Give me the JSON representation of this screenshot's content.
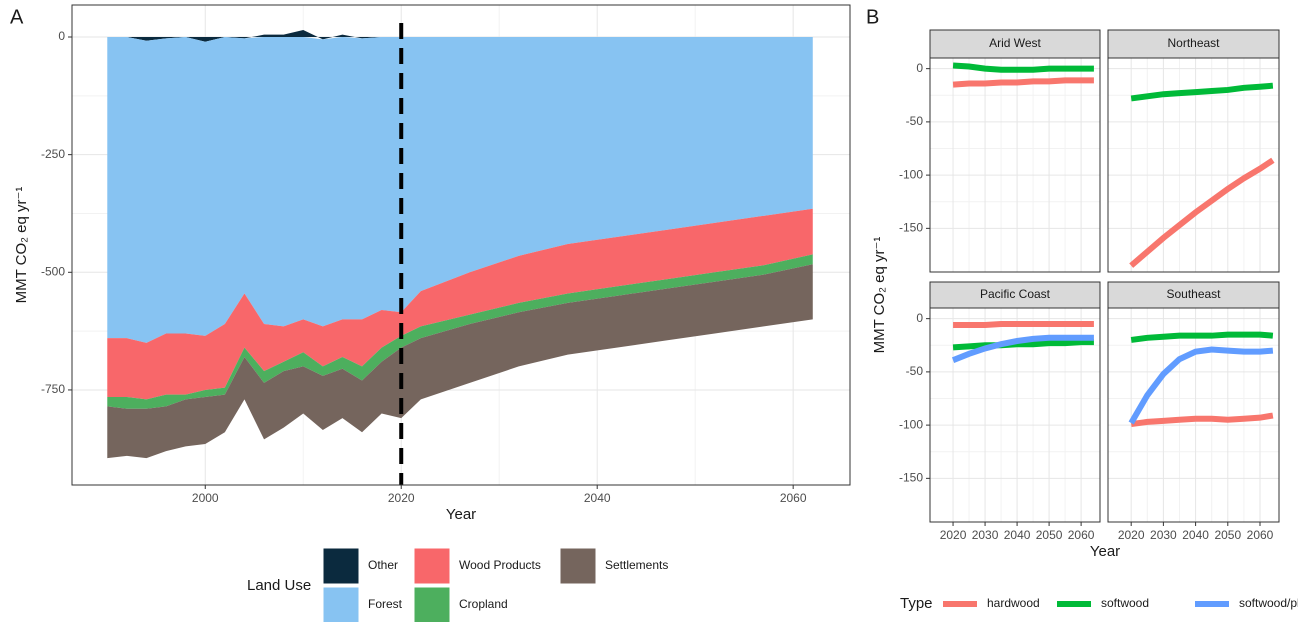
{
  "chart_data": [
    {
      "type": "stacked-area",
      "panel_label": "A",
      "x_label": "Year",
      "y_label": "MMT CO₂ eq yr⁻¹",
      "x": [
        1990,
        1992,
        1994,
        1996,
        1998,
        2000,
        2002,
        2004,
        2006,
        2008,
        2010,
        2012,
        2014,
        2016,
        2018,
        2020,
        2022,
        2027,
        2032,
        2037,
        2042,
        2047,
        2052,
        2057,
        2062
      ],
      "series": [
        {
          "name": "Other",
          "color": "#0b2a3e",
          "values": [
            0,
            0,
            -8,
            -3,
            0,
            -10,
            0,
            -3,
            5,
            5,
            15,
            -5,
            5,
            -3,
            0,
            0,
            0,
            0,
            0,
            0,
            0,
            0,
            0,
            0,
            0
          ]
        },
        {
          "name": "Forest",
          "color": "#87c3f2",
          "values": [
            -640,
            -640,
            -642,
            -627,
            -630,
            -625,
            -610,
            -542,
            -610,
            -615,
            -600,
            -610,
            -600,
            -597,
            -580,
            -585,
            -540,
            -500,
            -465,
            -440,
            -425,
            -410,
            -395,
            -380,
            -365
          ]
        },
        {
          "name": "Wood Products",
          "color": "#f8676a",
          "values": [
            -125,
            -125,
            -120,
            -130,
            -130,
            -115,
            -135,
            -115,
            -100,
            -75,
            -70,
            -85,
            -80,
            -100,
            -80,
            -50,
            -75,
            -90,
            -100,
            -105,
            -105,
            -105,
            -105,
            -105,
            -97
          ]
        },
        {
          "name": "Cropland",
          "color": "#4daf5e",
          "values": [
            -20,
            -25,
            -20,
            -25,
            -10,
            -15,
            -15,
            -20,
            -25,
            -20,
            -30,
            -20,
            -25,
            -30,
            -30,
            -25,
            -25,
            -20,
            -20,
            -20,
            -20,
            -20,
            -20,
            -20,
            -21
          ]
        },
        {
          "name": "Settlements",
          "color": "#75655d",
          "values": [
            -110,
            -100,
            -105,
            -95,
            -100,
            -100,
            -80,
            -90,
            -120,
            -120,
            -100,
            -115,
            -105,
            -110,
            -110,
            -150,
            -130,
            -125,
            -115,
            -110,
            -110,
            -110,
            -110,
            -110,
            -117
          ]
        }
      ],
      "vline": 2020,
      "xlim": [
        1986.4,
        2065.8
      ],
      "xticks": [
        2000,
        2020,
        2040,
        2060
      ],
      "ylim": [
        -952,
        68
      ],
      "yticks": [
        0,
        -250,
        -500,
        -750
      ],
      "grid": true,
      "legend_title": "Land Use",
      "legend_position": "bottom"
    },
    {
      "type": "facet-line",
      "panel_label": "B",
      "x_label": "Year",
      "y_label": "MMT CO₂ eq yr⁻¹",
      "x": [
        2020,
        2025,
        2030,
        2035,
        2040,
        2045,
        2050,
        2055,
        2060,
        2064
      ],
      "xlim": [
        2012.8,
        2065.9
      ],
      "xticks": [
        2020,
        2030,
        2040,
        2050,
        2060
      ],
      "ylim": [
        -191,
        10
      ],
      "yticks": [
        0,
        -50,
        -100,
        -150
      ],
      "grid": true,
      "legend_title": "Type",
      "legend_position": "bottom",
      "facets": [
        {
          "title": "Arid West",
          "series": [
            {
              "name": "hardwood",
              "color": "#f8766d",
              "values": [
                -15,
                -14,
                -14,
                -13,
                -13,
                -12,
                -12,
                -11,
                -11,
                -11
              ]
            },
            {
              "name": "softwood",
              "color": "#00ba38",
              "values": [
                3,
                2,
                0,
                -1,
                -1,
                -1,
                0,
                0,
                0,
                0
              ]
            }
          ]
        },
        {
          "title": "Northeast",
          "series": [
            {
              "name": "hardwood",
              "color": "#f8766d",
              "values": [
                -185,
                -172,
                -159,
                -147,
                -135,
                -124,
                -113,
                -103,
                -94,
                -86
              ]
            },
            {
              "name": "softwood",
              "color": "#00ba38",
              "values": [
                -28,
                -26,
                -24,
                -23,
                -22,
                -21,
                -20,
                -18,
                -17,
                -16
              ]
            }
          ]
        },
        {
          "title": "Pacific Coast",
          "series": [
            {
              "name": "hardwood",
              "color": "#f8766d",
              "values": [
                -6,
                -6,
                -6,
                -5,
                -5,
                -5,
                -5,
                -5,
                -5,
                -5
              ]
            },
            {
              "name": "softwood",
              "color": "#00ba38",
              "values": [
                -27,
                -26,
                -25,
                -25,
                -24,
                -24,
                -23,
                -23,
                -22,
                -22
              ]
            },
            {
              "name": "softwood/plantation",
              "color": "#619cff",
              "values": [
                -39,
                -33,
                -28,
                -24,
                -21,
                -19,
                -18,
                -18,
                -18,
                -18
              ]
            }
          ]
        },
        {
          "title": "Southeast",
          "series": [
            {
              "name": "hardwood",
              "color": "#f8766d",
              "values": [
                -99,
                -97,
                -96,
                -95,
                -94,
                -94,
                -95,
                -94,
                -93,
                -91
              ]
            },
            {
              "name": "softwood",
              "color": "#00ba38",
              "values": [
                -20,
                -18,
                -17,
                -16,
                -16,
                -16,
                -15,
                -15,
                -15,
                -16
              ]
            },
            {
              "name": "softwood/plantation",
              "color": "#619cff",
              "values": [
                -98,
                -72,
                -52,
                -38,
                -31,
                -29,
                -30,
                -31,
                -31,
                -30
              ]
            }
          ]
        }
      ]
    }
  ]
}
